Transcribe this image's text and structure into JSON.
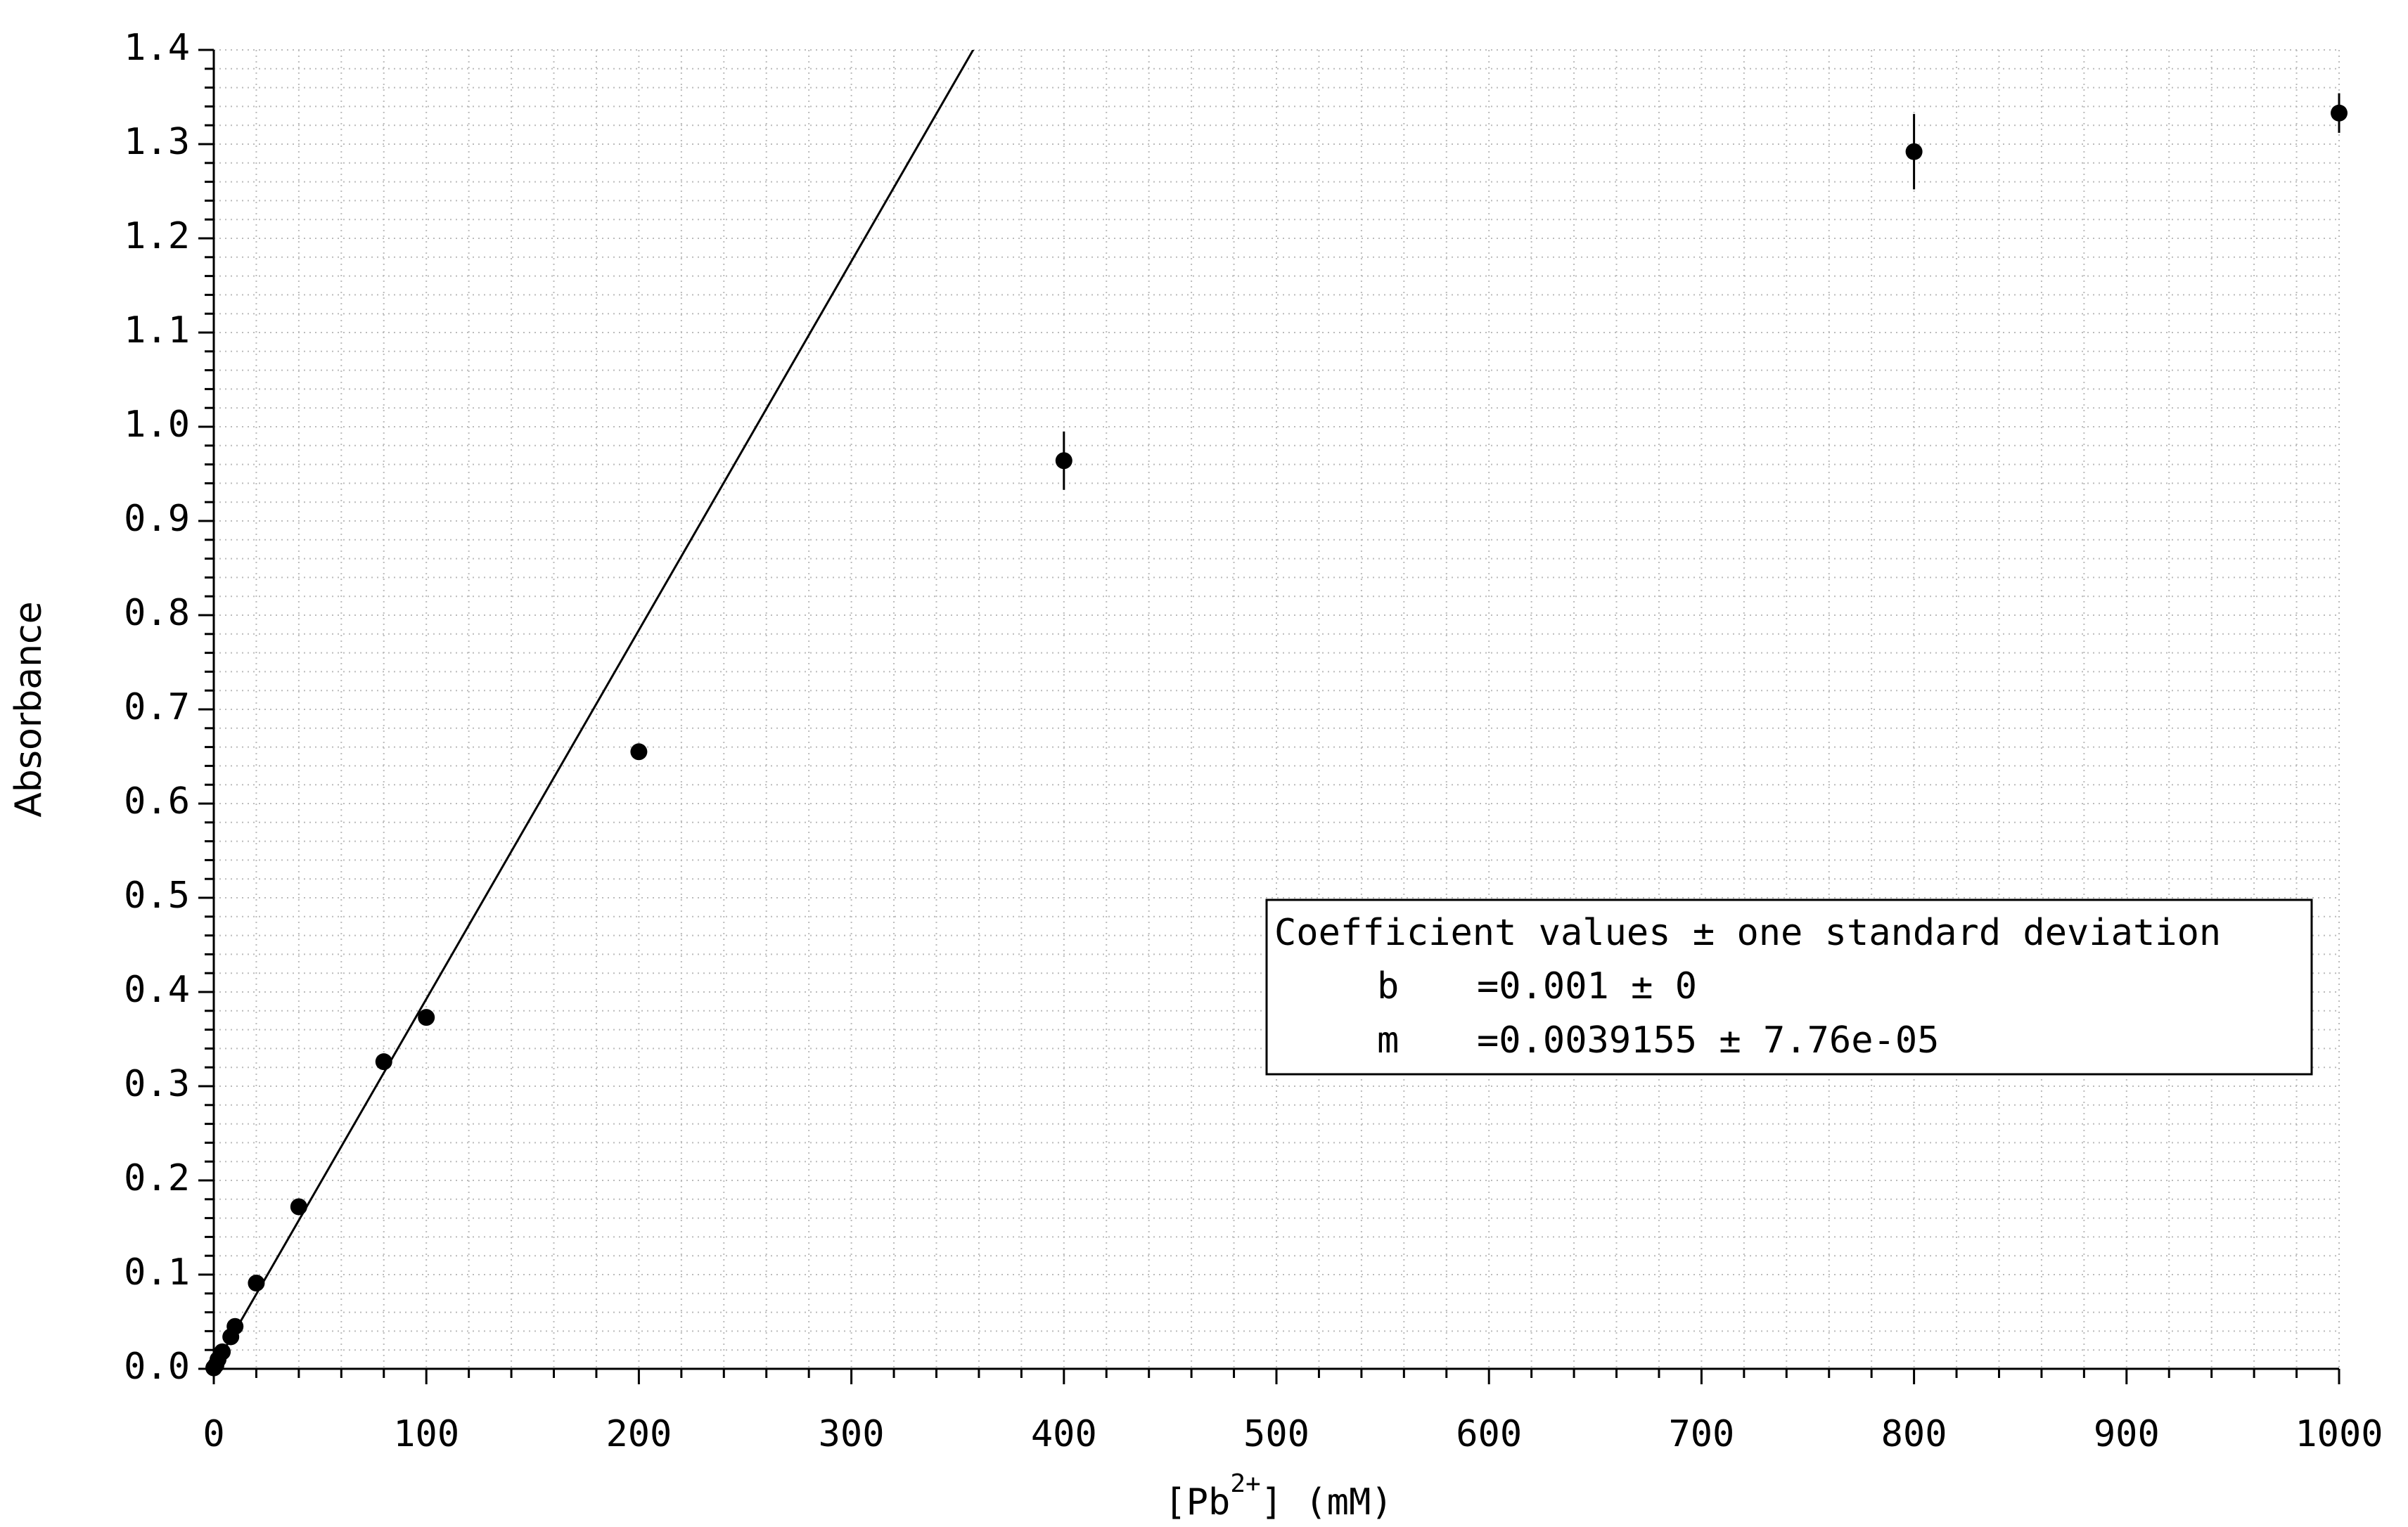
{
  "chart_data": {
    "type": "scatter",
    "ylabel": "Absorbance",
    "xlabel_parts": [
      "[Pb",
      "2+",
      "] (mM)"
    ],
    "x": [
      0,
      1,
      2,
      4,
      8,
      10,
      20,
      40,
      80,
      100,
      200,
      400,
      800,
      1000
    ],
    "values": [
      0.001,
      0.004,
      0.01,
      0.018,
      0.034,
      0.045,
      0.091,
      0.172,
      0.326,
      0.373,
      0.655,
      0.964,
      1.292,
      1.333
    ],
    "errors": [
      0,
      0,
      0,
      0,
      0,
      0,
      0,
      0,
      0,
      0,
      0,
      0.031,
      0.04,
      0.021
    ],
    "color": "#000000",
    "fit": {
      "intercept": 0.001,
      "slope": 0.0039155
    },
    "annotation": {
      "title": "Coefficient values ± one standard deviation",
      "rows": [
        [
          "b",
          "=0.001 ± 0"
        ],
        [
          "m",
          "=0.0039155 ± 7.76e-05"
        ]
      ]
    },
    "xlim": [
      0,
      1000
    ],
    "xticks": [
      0,
      100,
      200,
      300,
      400,
      500,
      600,
      700,
      800,
      900,
      1000
    ],
    "ylim": [
      0,
      1.4
    ],
    "yticks": [
      {
        "value": 0,
        "label": "0.0"
      },
      0.1,
      0.2,
      0.3,
      0.4,
      0.5,
      0.6,
      0.7,
      0.8,
      0.9,
      {
        "value": 1,
        "label": "1.0"
      },
      1.1,
      1.2,
      1.3,
      1.4
    ],
    "grid": true
  }
}
